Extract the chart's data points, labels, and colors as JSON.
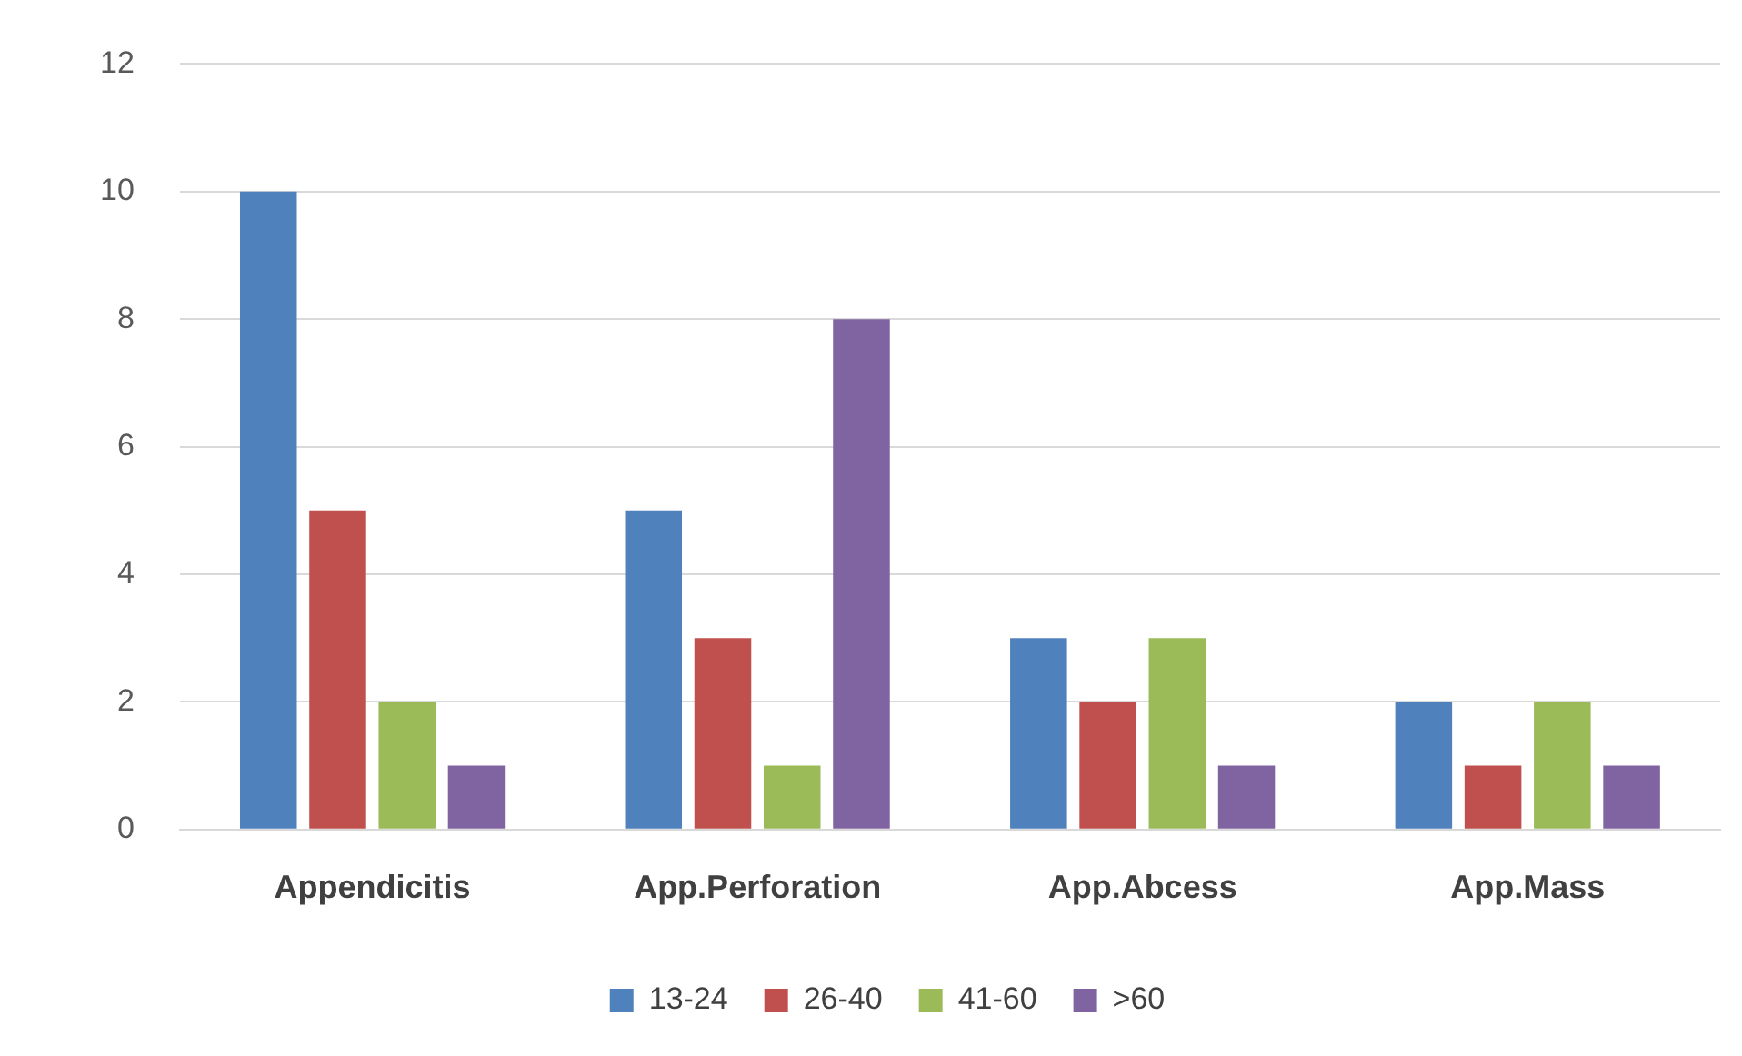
{
  "chart_data": {
    "type": "bar",
    "categories": [
      "Appendicitis",
      "App.Perforation",
      "App.Abcess",
      "App.Mass"
    ],
    "series": [
      {
        "name": "13-24",
        "color": "#4f81bd",
        "values": [
          10,
          5,
          3,
          2
        ]
      },
      {
        "name": "26-40",
        "color": "#c0504d",
        "values": [
          5,
          3,
          2,
          1
        ]
      },
      {
        "name": "41-60",
        "color": "#9bbb59",
        "values": [
          2,
          1,
          3,
          2
        ]
      },
      {
        "name": ">60",
        "color": "#8064a2",
        "values": [
          1,
          8,
          1,
          1
        ]
      }
    ],
    "ylim": [
      0,
      12
    ],
    "yticks": [
      0,
      2,
      4,
      6,
      8,
      10,
      12
    ],
    "grid": "y",
    "legend": "bottom"
  }
}
